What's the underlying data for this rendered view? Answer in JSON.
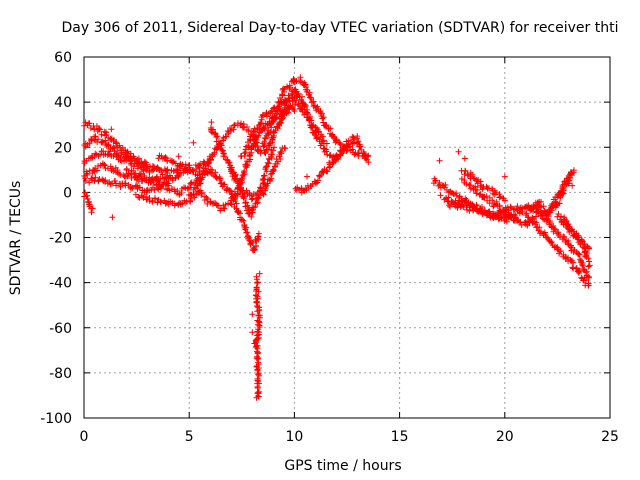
{
  "chart_data": {
    "type": "scatter",
    "title": "Day 306 of 2011, Sidereal Day-to-day VTEC variation (SDTVAR) for receiver thti",
    "xlabel": "GPS time / hours",
    "ylabel": "SDTVAR / TECUs",
    "xlim": [
      0,
      25
    ],
    "ylim": [
      -100,
      60
    ],
    "x_ticks": [
      0,
      5,
      10,
      15,
      20,
      25
    ],
    "y_ticks": [
      -100,
      -80,
      -60,
      -40,
      -20,
      0,
      20,
      40,
      60
    ],
    "x_tick_labels": [
      "0",
      "5",
      "10",
      "15",
      "20",
      "25"
    ],
    "y_tick_labels": [
      "-100",
      "-80",
      "-60",
      "-40",
      "-20",
      "0",
      "20",
      "40",
      "60"
    ],
    "grid": true,
    "marker": "+",
    "color": "#ff0000",
    "series": [
      {
        "name": "SDTVAR",
        "tracks": [
          {
            "x": [
              0.0,
              0.5,
              1.0,
              1.5,
              2.0,
              2.5,
              3.0
            ],
            "y": [
              30,
              29,
              26,
              22,
              18,
              15,
              12
            ]
          },
          {
            "x": [
              0.0,
              0.5,
              1.0,
              1.5,
              2.0,
              2.5,
              3.0,
              3.5
            ],
            "y": [
              20,
              24,
              22,
              18,
              16,
              14,
              12,
              10
            ]
          },
          {
            "x": [
              0.0,
              0.5,
              1.0,
              1.5,
              2.0,
              2.5,
              3.0,
              3.5,
              4.0
            ],
            "y": [
              14,
              16,
              18,
              16,
              14,
              12,
              10,
              10,
              9
            ]
          },
          {
            "x": [
              0.0,
              0.5,
              1.0,
              1.5,
              2.0,
              2.5,
              3.0,
              3.5,
              4.0,
              4.5,
              5.0
            ],
            "y": [
              8,
              10,
              12,
              10,
              8,
              6,
              5,
              6,
              8,
              10,
              12
            ]
          },
          {
            "x": [
              0.0,
              0.5,
              1.0,
              1.5,
              2.0,
              2.5,
              3.0,
              3.5,
              4.0,
              4.5,
              5.0,
              5.5
            ],
            "y": [
              5,
              6,
              5,
              4,
              3,
              2,
              1,
              2,
              5,
              8,
              10,
              8
            ]
          },
          {
            "x": [
              0.0,
              0.2,
              0.4
            ],
            "y": [
              0,
              -5,
              -8
            ]
          },
          {
            "x": [
              2.0,
              2.5,
              3.0,
              3.5,
              4.0,
              4.5,
              5.0,
              5.5,
              6.0
            ],
            "y": [
              10,
              8,
              6,
              4,
              2,
              0,
              2,
              6,
              10
            ]
          },
          {
            "x": [
              2.5,
              3.0,
              3.5,
              4.0,
              4.5,
              5.0,
              5.5
            ],
            "y": [
              -2,
              -3,
              -4,
              -5,
              -5,
              -3,
              0
            ]
          },
          {
            "x": [
              3.5,
              4.0,
              4.5,
              5.0,
              5.5,
              6.0
            ],
            "y": [
              16,
              14,
              12,
              10,
              12,
              14
            ]
          },
          {
            "x": [
              5.0,
              5.5,
              6.0,
              6.5,
              7.0,
              7.5,
              8.0,
              8.3,
              8.7,
              9.0,
              9.5,
              10.0
            ],
            "y": [
              -2,
              5,
              15,
              22,
              28,
              30,
              26,
              18,
              18,
              25,
              35,
              40
            ]
          },
          {
            "x": [
              5.5,
              6.0,
              6.5,
              7.0,
              7.5,
              8.0,
              8.5,
              9.0,
              9.5,
              10.0
            ],
            "y": [
              0,
              -5,
              -7,
              -5,
              5,
              20,
              28,
              33,
              36,
              37
            ]
          },
          {
            "x": [
              6.0,
              6.5,
              7.0,
              7.5,
              8.0,
              8.5,
              9.0,
              9.5
            ],
            "y": [
              30,
              20,
              10,
              2,
              -2,
              0,
              10,
              20
            ]
          },
          {
            "x": [
              6.0,
              6.5,
              7.0,
              7.3,
              7.6,
              7.9,
              8.1,
              8.3
            ],
            "y": [
              10,
              5,
              0,
              -8,
              -15,
              -22,
              -25,
              -18
            ]
          },
          {
            "x": [
              7.0,
              7.5,
              7.9,
              8.2,
              8.5,
              9.0
            ],
            "y": [
              10,
              0,
              -10,
              -5,
              5,
              20
            ]
          },
          {
            "x": [
              8.2,
              8.2,
              8.3,
              8.3,
              8.2,
              8.3
            ],
            "y": [
              -38,
              -45,
              -54,
              -62,
              -66,
              -91
            ]
          },
          {
            "x": [
              7.5,
              8.0,
              8.5,
              9.0,
              9.5,
              10.0,
              10.5,
              11.0,
              11.5
            ],
            "y": [
              15,
              25,
              33,
              37,
              40,
              42,
              35,
              28,
              22
            ]
          },
          {
            "x": [
              8.5,
              9.0,
              9.5,
              10.0,
              10.3,
              10.6,
              11.0,
              11.5,
              12.0,
              12.5,
              13.0,
              13.5
            ],
            "y": [
              20,
              32,
              45,
              50,
              50,
              45,
              38,
              30,
              23,
              20,
              17,
              14
            ]
          },
          {
            "x": [
              9.3,
              9.6,
              10.0,
              10.3,
              10.6,
              11.0,
              11.5,
              12.0,
              12.5,
              13.0
            ],
            "y": [
              30,
              40,
              45,
              42,
              35,
              25,
              18,
              15,
              22,
              25
            ]
          },
          {
            "x": [
              10.0,
              10.3,
              10.6,
              11.0,
              11.5,
              12.0,
              12.5,
              13.0,
              13.5
            ],
            "y": [
              2,
              1,
              2,
              5,
              10,
              15,
              20,
              22,
              15
            ]
          },
          {
            "x": [
              16.6,
              17.0,
              17.5,
              18.0,
              18.5,
              19.0,
              19.5,
              20.0,
              20.5,
              21.0,
              21.5,
              22.0
            ],
            "y": [
              5,
              3,
              0,
              -3,
              -6,
              -9,
              -10,
              -8,
              -7,
              -6,
              -8,
              -10
            ]
          },
          {
            "x": [
              17.3,
              17.8,
              18.3,
              18.8,
              19.3,
              19.8,
              20.3,
              20.8,
              21.3,
              21.8
            ],
            "y": [
              -5,
              -6,
              -7,
              -8,
              -10,
              -12,
              -10,
              -8,
              -6,
              -5
            ]
          },
          {
            "x": [
              18.0,
              18.5,
              19.0,
              19.5,
              20.0,
              20.5,
              21.0,
              21.5
            ],
            "y": [
              5,
              2,
              -2,
              -5,
              -8,
              -12,
              -14,
              -10
            ]
          },
          {
            "x": [
              17.0,
              17.5,
              18.0,
              18.5,
              19.0,
              19.5,
              20.0,
              20.5
            ],
            "y": [
              -2,
              -4,
              -5,
              -6,
              -8,
              -10,
              -10,
              -12
            ]
          },
          {
            "x": [
              18.0,
              18.3,
              18.6,
              19.0,
              19.5,
              20.0
            ],
            "y": [
              10,
              8,
              6,
              2,
              0,
              -3
            ]
          },
          {
            "x": [
              21.5,
              22.0,
              22.5,
              23.0,
              23.3
            ],
            "y": [
              -5,
              -10,
              -5,
              5,
              10
            ]
          },
          {
            "x": [
              22.0,
              22.3,
              22.6,
              22.9,
              23.2
            ],
            "y": [
              -10,
              -5,
              0,
              5,
              8
            ]
          },
          {
            "x": [
              21.0,
              21.5,
              22.0,
              22.5,
              23.0,
              23.5,
              24.0
            ],
            "y": [
              -10,
              -15,
              -20,
              -25,
              -30,
              -35,
              -42
            ]
          },
          {
            "x": [
              21.5,
              22.0,
              22.5,
              23.0,
              23.5,
              24.0
            ],
            "y": [
              -8,
              -12,
              -18,
              -22,
              -28,
              -38
            ]
          },
          {
            "x": [
              22.5,
              23.0,
              23.5,
              23.8,
              24.0
            ],
            "y": [
              -10,
              -15,
              -20,
              -25,
              -32
            ]
          },
          {
            "x": [
              22.8,
              23.2,
              23.6,
              24.0
            ],
            "y": [
              -12,
              -18,
              -22,
              -25
            ]
          }
        ],
        "outliers": {
          "x": [
            1.3,
            1.35,
            4.5,
            5.2,
            5.8,
            8.0,
            8.0,
            8.1,
            8.25,
            8.3,
            8.35,
            8.2,
            10.6,
            16.9,
            16.7,
            18.1,
            17.8,
            20.0,
            20.1,
            23.2
          ],
          "y": [
            28,
            -11,
            16,
            22,
            9,
            -54,
            -62,
            -67,
            -68,
            -44,
            -36,
            -91,
            7,
            14,
            5,
            15,
            18,
            7,
            -13,
            3
          ]
        }
      }
    ]
  }
}
